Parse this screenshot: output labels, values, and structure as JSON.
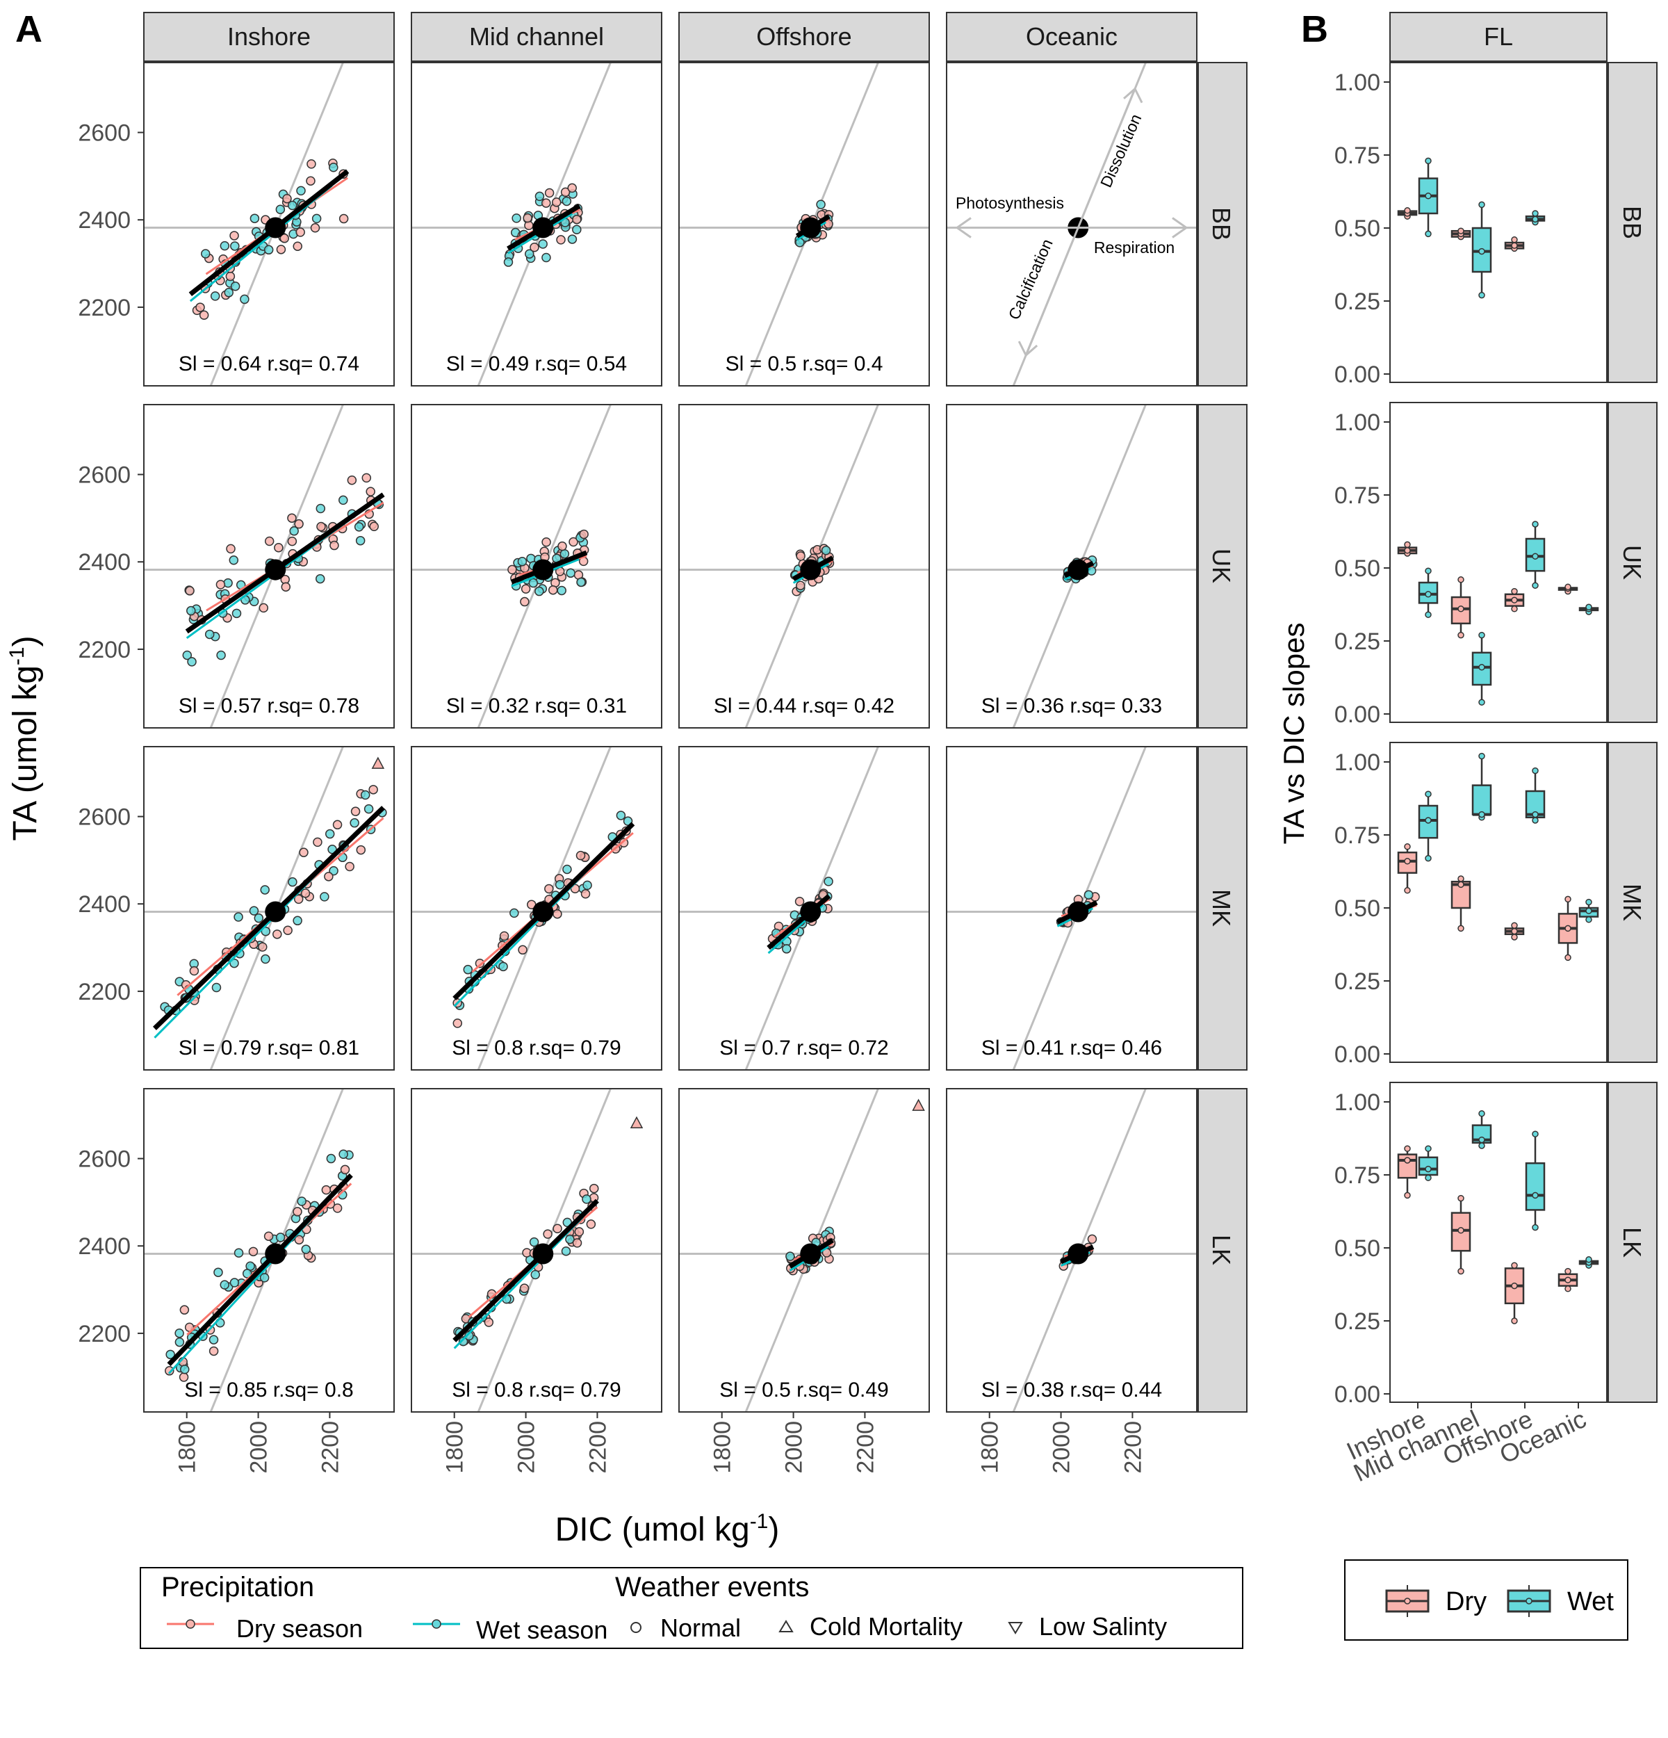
{
  "colors": {
    "dry": "#F8766D",
    "wet": "#00BFC4",
    "dry_fill": "#F8B4AE",
    "wet_fill": "#66D8DB",
    "guide": "#BEBEBE",
    "fit": "#000000"
  },
  "panelA": {
    "letter": "A",
    "col_strips": [
      "Inshore",
      "Mid channel",
      "Offshore",
      "Oceanic"
    ],
    "row_strips": [
      "BB",
      "UK",
      "MK",
      "LK"
    ],
    "xlabel_main": "DIC (umol kg",
    "xlabel_sup": "-1",
    "xlabel_end": ")",
    "ylabel_main": "TA (umol kg",
    "ylabel_sup": "-1",
    "ylabel_end": ")",
    "x_ticks": [
      "1800",
      "2000",
      "2200"
    ],
    "y_ticks": [
      "2200",
      "2400",
      "2600"
    ],
    "annotations": {
      "dissolution": "Dissolution",
      "photosynthesis": "Photosynthesis",
      "respiration": "Respiration",
      "calcification": "Calcification"
    },
    "stats": [
      [
        "Sl = 0.64 r.sq= 0.74",
        "Sl = 0.49 r.sq= 0.54",
        "Sl = 0.5 r.sq= 0.4",
        ""
      ],
      [
        "Sl = 0.57 r.sq= 0.78",
        "Sl = 0.32 r.sq= 0.31",
        "Sl = 0.44 r.sq= 0.42",
        "Sl = 0.36 r.sq= 0.33"
      ],
      [
        "Sl = 0.79 r.sq= 0.81",
        "Sl = 0.8 r.sq= 0.79",
        "Sl = 0.7 r.sq= 0.72",
        "Sl = 0.41 r.sq= 0.46"
      ],
      [
        "Sl = 0.85 r.sq= 0.8",
        "Sl = 0.8 r.sq= 0.79",
        "Sl = 0.5 r.sq= 0.49",
        "Sl = 0.38 r.sq= 0.44"
      ]
    ]
  },
  "panelB": {
    "letter": "B",
    "strip_top": "FL",
    "row_strips": [
      "BB",
      "UK",
      "MK",
      "LK"
    ],
    "ylabel": "TA vs DIC slopes",
    "y_ticks": [
      "0.00",
      "0.25",
      "0.50",
      "0.75",
      "1.00"
    ],
    "x_ticks": [
      "Inshore",
      "Mid channel",
      "Offshore",
      "Oceanic"
    ]
  },
  "legendA": {
    "precip_title": "Precipitation",
    "weather_title": "Weather events",
    "dry": "Dry season",
    "wet": "Wet season",
    "normal": "Normal",
    "cold": "Cold Mortality",
    "low": "Low Salinty"
  },
  "legendB": {
    "dry": "Dry",
    "wet": "Wet"
  },
  "chart_data": [
    {
      "type": "scatter",
      "x_range": [
        1680,
        2380
      ],
      "y_range": [
        2020,
        2760
      ],
      "center": [
        2048,
        2382
      ],
      "guide_lines": {
        "horizontal_y": 2382,
        "steep_slope": 2.0
      },
      "panels": [
        {
          "row": "BB",
          "col": "Inshore",
          "slope": 0.64,
          "fit_x": [
            1810,
            2250
          ]
        },
        {
          "row": "BB",
          "col": "Mid channel",
          "slope": 0.49,
          "fit_x": [
            1950,
            2150
          ]
        },
        {
          "row": "BB",
          "col": "Offshore",
          "slope": 0.5,
          "fit_x": [
            2010,
            2100
          ]
        },
        {
          "row": "UK",
          "col": "Inshore",
          "slope": 0.57,
          "fit_x": [
            1800,
            2350
          ]
        },
        {
          "row": "UK",
          "col": "Mid channel",
          "slope": 0.32,
          "fit_x": [
            1960,
            2170
          ]
        },
        {
          "row": "UK",
          "col": "Offshore",
          "slope": 0.44,
          "fit_x": [
            2000,
            2110
          ]
        },
        {
          "row": "UK",
          "col": "Oceanic",
          "slope": 0.36,
          "fit_x": [
            2010,
            2090
          ]
        },
        {
          "row": "MK",
          "col": "Inshore",
          "slope": 0.79,
          "fit_x": [
            1710,
            2350
          ]
        },
        {
          "row": "MK",
          "col": "Mid channel",
          "slope": 0.8,
          "fit_x": [
            1800,
            2300
          ]
        },
        {
          "row": "MK",
          "col": "Offshore",
          "slope": 0.7,
          "fit_x": [
            1930,
            2100
          ]
        },
        {
          "row": "MK",
          "col": "Oceanic",
          "slope": 0.41,
          "fit_x": [
            1990,
            2100
          ]
        },
        {
          "row": "LK",
          "col": "Inshore",
          "slope": 0.85,
          "fit_x": [
            1750,
            2260
          ]
        },
        {
          "row": "LK",
          "col": "Mid channel",
          "slope": 0.8,
          "fit_x": [
            1800,
            2200
          ]
        },
        {
          "row": "LK",
          "col": "Offshore",
          "slope": 0.5,
          "fit_x": [
            1990,
            2110
          ]
        },
        {
          "row": "LK",
          "col": "Oceanic",
          "slope": 0.38,
          "fit_x": [
            2000,
            2090
          ]
        }
      ],
      "outliers": [
        {
          "row": "MK",
          "col": "Inshore",
          "x": 2335,
          "y": 2720,
          "event": "Cold Mortality"
        },
        {
          "row": "LK",
          "col": "Mid channel",
          "x": 2310,
          "y": 2680,
          "event": "Cold Mortality"
        },
        {
          "row": "LK",
          "col": "Offshore",
          "x": 2350,
          "y": 2720,
          "event": "Cold Mortality"
        }
      ]
    },
    {
      "type": "box",
      "categories": [
        "Inshore",
        "Mid channel",
        "Offshore",
        "Oceanic"
      ],
      "ylim": [
        0,
        1
      ],
      "series_names": [
        "Dry",
        "Wet"
      ],
      "rows": [
        {
          "row": "BB",
          "boxes": [
            {
              "cat": "Inshore",
              "season": "Dry",
              "min": 0.54,
              "q1": 0.545,
              "med": 0.55,
              "q3": 0.558,
              "max": 0.56
            },
            {
              "cat": "Inshore",
              "season": "Wet",
              "min": 0.48,
              "q1": 0.55,
              "med": 0.61,
              "q3": 0.67,
              "max": 0.73
            },
            {
              "cat": "Mid channel",
              "season": "Dry",
              "min": 0.47,
              "q1": 0.47,
              "med": 0.48,
              "q3": 0.49,
              "max": 0.49
            },
            {
              "cat": "Mid channel",
              "season": "Wet",
              "min": 0.27,
              "q1": 0.35,
              "med": 0.42,
              "q3": 0.5,
              "max": 0.58
            },
            {
              "cat": "Offshore",
              "season": "Dry",
              "min": 0.43,
              "q1": 0.43,
              "med": 0.44,
              "q3": 0.45,
              "max": 0.46
            },
            {
              "cat": "Offshore",
              "season": "Wet",
              "min": 0.52,
              "q1": 0.525,
              "med": 0.53,
              "q3": 0.54,
              "max": 0.55
            }
          ]
        },
        {
          "row": "UK",
          "boxes": [
            {
              "cat": "Inshore",
              "season": "Dry",
              "min": 0.55,
              "q1": 0.55,
              "med": 0.56,
              "q3": 0.57,
              "max": 0.58
            },
            {
              "cat": "Inshore",
              "season": "Wet",
              "min": 0.34,
              "q1": 0.38,
              "med": 0.41,
              "q3": 0.45,
              "max": 0.49
            },
            {
              "cat": "Mid channel",
              "season": "Dry",
              "min": 0.27,
              "q1": 0.31,
              "med": 0.36,
              "q3": 0.4,
              "max": 0.46
            },
            {
              "cat": "Mid channel",
              "season": "Wet",
              "min": 0.04,
              "q1": 0.1,
              "med": 0.16,
              "q3": 0.21,
              "max": 0.27
            },
            {
              "cat": "Offshore",
              "season": "Dry",
              "min": 0.36,
              "q1": 0.37,
              "med": 0.39,
              "q3": 0.41,
              "max": 0.42
            },
            {
              "cat": "Offshore",
              "season": "Wet",
              "min": 0.44,
              "q1": 0.49,
              "med": 0.54,
              "q3": 0.6,
              "max": 0.65
            },
            {
              "cat": "Oceanic",
              "season": "Dry",
              "min": 0.42,
              "q1": 0.425,
              "med": 0.43,
              "q3": 0.432,
              "max": 0.435
            },
            {
              "cat": "Oceanic",
              "season": "Wet",
              "min": 0.35,
              "q1": 0.355,
              "med": 0.36,
              "q3": 0.363,
              "max": 0.366
            }
          ]
        },
        {
          "row": "MK",
          "boxes": [
            {
              "cat": "Inshore",
              "season": "Dry",
              "min": 0.56,
              "q1": 0.62,
              "med": 0.66,
              "q3": 0.69,
              "max": 0.71
            },
            {
              "cat": "Inshore",
              "season": "Wet",
              "min": 0.67,
              "q1": 0.74,
              "med": 0.8,
              "q3": 0.85,
              "max": 0.89
            },
            {
              "cat": "Mid channel",
              "season": "Dry",
              "min": 0.43,
              "q1": 0.5,
              "med": 0.58,
              "q3": 0.59,
              "max": 0.6
            },
            {
              "cat": "Mid channel",
              "season": "Wet",
              "min": 0.81,
              "q1": 0.82,
              "med": 0.82,
              "q3": 0.92,
              "max": 1.02
            },
            {
              "cat": "Offshore",
              "season": "Dry",
              "min": 0.4,
              "q1": 0.41,
              "med": 0.42,
              "q3": 0.43,
              "max": 0.44
            },
            {
              "cat": "Offshore",
              "season": "Wet",
              "min": 0.8,
              "q1": 0.81,
              "med": 0.82,
              "q3": 0.9,
              "max": 0.97
            },
            {
              "cat": "Oceanic",
              "season": "Dry",
              "min": 0.33,
              "q1": 0.38,
              "med": 0.43,
              "q3": 0.48,
              "max": 0.53
            },
            {
              "cat": "Oceanic",
              "season": "Wet",
              "min": 0.46,
              "q1": 0.47,
              "med": 0.49,
              "q3": 0.5,
              "max": 0.52
            }
          ]
        },
        {
          "row": "LK",
          "boxes": [
            {
              "cat": "Inshore",
              "season": "Dry",
              "min": 0.68,
              "q1": 0.74,
              "med": 0.8,
              "q3": 0.82,
              "max": 0.84
            },
            {
              "cat": "Inshore",
              "season": "Wet",
              "min": 0.74,
              "q1": 0.75,
              "med": 0.77,
              "q3": 0.81,
              "max": 0.84
            },
            {
              "cat": "Mid channel",
              "season": "Dry",
              "min": 0.42,
              "q1": 0.49,
              "med": 0.56,
              "q3": 0.62,
              "max": 0.67
            },
            {
              "cat": "Mid channel",
              "season": "Wet",
              "min": 0.85,
              "q1": 0.86,
              "med": 0.87,
              "q3": 0.92,
              "max": 0.96
            },
            {
              "cat": "Offshore",
              "season": "Dry",
              "min": 0.25,
              "q1": 0.31,
              "med": 0.37,
              "q3": 0.43,
              "max": 0.44
            },
            {
              "cat": "Offshore",
              "season": "Wet",
              "min": 0.57,
              "q1": 0.63,
              "med": 0.68,
              "q3": 0.79,
              "max": 0.89
            },
            {
              "cat": "Oceanic",
              "season": "Dry",
              "min": 0.36,
              "q1": 0.37,
              "med": 0.39,
              "q3": 0.41,
              "max": 0.42
            },
            {
              "cat": "Oceanic",
              "season": "Wet",
              "min": 0.44,
              "q1": 0.445,
              "med": 0.45,
              "q3": 0.455,
              "max": 0.46
            }
          ]
        }
      ]
    }
  ]
}
